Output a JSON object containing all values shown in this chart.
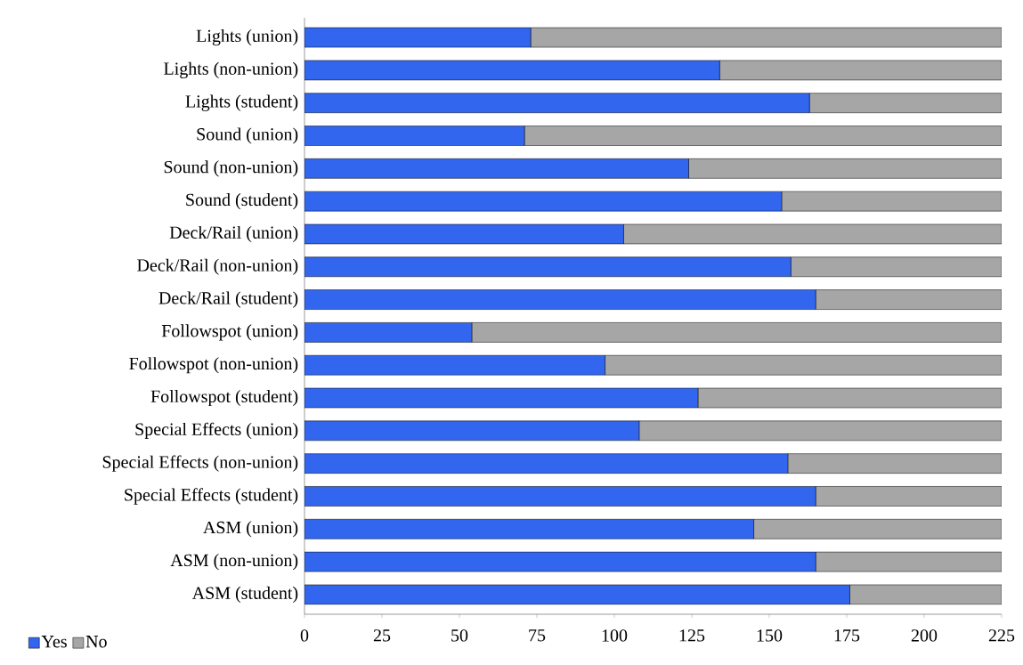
{
  "chart_data": {
    "type": "bar",
    "orientation": "horizontal",
    "stacked": true,
    "categories": [
      "Lights (union)",
      "Lights (non-union)",
      "Lights (student)",
      "Sound (union)",
      "Sound (non-union)",
      "Sound (student)",
      "Deck/Rail (union)",
      "Deck/Rail (non-union)",
      "Deck/Rail (student)",
      "Followspot (union)",
      "Followspot (non-union)",
      "Followspot (student)",
      "Special Effects (union)",
      "Special Effects (non-union)",
      "Special Effects (student)",
      "ASM (union)",
      "ASM (non-union)",
      "ASM (student)"
    ],
    "series": [
      {
        "name": "Yes",
        "color": "#3366ee",
        "values": [
          73,
          134,
          163,
          71,
          124,
          154,
          103,
          157,
          165,
          54,
          97,
          127,
          108,
          156,
          165,
          145,
          165,
          176
        ]
      },
      {
        "name": "No",
        "color": "#a6a6a6",
        "values": [
          152,
          91,
          62,
          154,
          101,
          71,
          122,
          68,
          60,
          171,
          128,
          98,
          117,
          69,
          60,
          80,
          60,
          49
        ]
      }
    ],
    "xlim": [
      0,
      225
    ],
    "xticks": [
      0,
      25,
      50,
      75,
      100,
      125,
      150,
      175,
      200,
      225
    ],
    "grid": false,
    "legend": "bottom left"
  }
}
